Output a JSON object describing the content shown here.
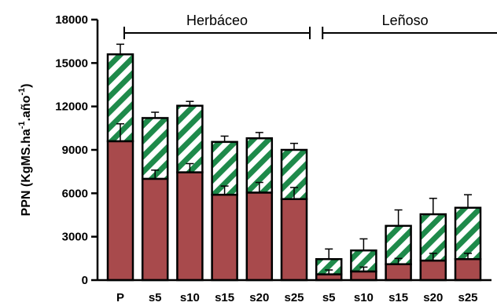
{
  "chart_data": {
    "type": "bar",
    "stacked": true,
    "ylabel": {
      "main": "PPN (KgMS.ha",
      "sup1": "-1",
      "mid": ".año",
      "sup2": "-1",
      "end": ")"
    },
    "ylim": [
      0,
      18000
    ],
    "yticks": [
      "0",
      "3000",
      "6000",
      "9000",
      "12000",
      "15000",
      "18000"
    ],
    "ytick_values": [
      0,
      3000,
      6000,
      9000,
      12000,
      15000,
      18000
    ],
    "categories": [
      "P",
      "s5",
      "s10",
      "s15",
      "s20",
      "s25",
      "s5",
      "s10",
      "s15",
      "s20",
      "s25"
    ],
    "groups": [
      {
        "label": "Herbáceo",
        "from_index": 0,
        "to_index": 5
      },
      {
        "label": "Leñoso",
        "from_index": 6,
        "to_index": 10
      }
    ],
    "series": [
      {
        "values": [
          9600,
          7000,
          7450,
          5900,
          6050,
          5600,
          400,
          600,
          1100,
          1350,
          1450
        ],
        "error": [
          1200,
          600,
          600,
          600,
          700,
          800,
          300,
          300,
          400,
          500,
          400
        ],
        "color": "#a84a4c"
      },
      {
        "values": [
          6000,
          4200,
          4600,
          3650,
          3750,
          3400,
          1050,
          1450,
          2650,
          3200,
          3550
        ],
        "error": [
          700,
          400,
          300,
          400,
          400,
          450,
          700,
          800,
          1100,
          1100,
          900
        ],
        "color": "#1e8a4a",
        "pattern": "diagonal-stripes"
      }
    ]
  }
}
